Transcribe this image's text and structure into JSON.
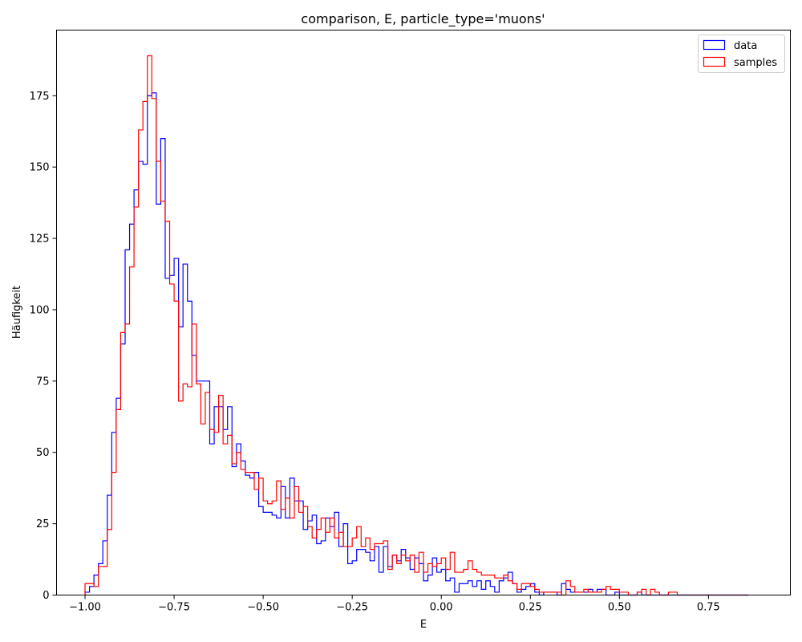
{
  "chart_data": {
    "type": "histogram",
    "title": "comparison, E, particle_type='muons'",
    "xlabel": "E",
    "ylabel": "Häufigkeit",
    "xlim": [
      -1.08,
      0.98
    ],
    "ylim": [
      0,
      198
    ],
    "x_ticks": [
      -1.0,
      -0.75,
      -0.5,
      -0.25,
      0.0,
      0.25,
      0.5,
      0.75
    ],
    "x_tick_labels": [
      "−1.00",
      "−0.75",
      "−0.50",
      "−0.25",
      "0.00",
      "0.25",
      "0.50",
      "0.75"
    ],
    "y_ticks": [
      0,
      25,
      50,
      75,
      100,
      125,
      150,
      175
    ],
    "y_tick_labels": [
      "0",
      "25",
      "50",
      "75",
      "100",
      "125",
      "150",
      "175"
    ],
    "grid": false,
    "legend_position": "top-right",
    "bin_start": -1.0,
    "bin_width": 0.0125,
    "series": [
      {
        "name": "data",
        "color": "#0000ff",
        "values": [
          1,
          3,
          7,
          11,
          19,
          35,
          57,
          69,
          88,
          121,
          130,
          142,
          152,
          151,
          175,
          176,
          137,
          160,
          111,
          112,
          118,
          94,
          116,
          103,
          84,
          75,
          75,
          75,
          53,
          66,
          66,
          58,
          66,
          45,
          53,
          47,
          42,
          41,
          43,
          31,
          29,
          29,
          28,
          27,
          38,
          27,
          41,
          33,
          33,
          23,
          26,
          28,
          18,
          19,
          27,
          24,
          29,
          17,
          25,
          11,
          12,
          16,
          16,
          15,
          12,
          17,
          8,
          17,
          10,
          14,
          12,
          16,
          13,
          9,
          13,
          11,
          5,
          7,
          13,
          8,
          9,
          5,
          6,
          1,
          4,
          4,
          5,
          3,
          5,
          2,
          5,
          3,
          1,
          5,
          6,
          8,
          4,
          1,
          2,
          3,
          4,
          1,
          0,
          1,
          1,
          1,
          0,
          4,
          2,
          1,
          1,
          1,
          1,
          2,
          1,
          2,
          2,
          0,
          0,
          1,
          0,
          0,
          0,
          0,
          1,
          0,
          0,
          0,
          0,
          0,
          0,
          0,
          0,
          0,
          0,
          0,
          0,
          0,
          0,
          0,
          0,
          0,
          0,
          0,
          0,
          0,
          0,
          0,
          0
        ]
      },
      {
        "name": "samples",
        "color": "#ff0000",
        "values": [
          4,
          4,
          3,
          10,
          10,
          23,
          43,
          65,
          92,
          95,
          115,
          136,
          163,
          173,
          189,
          174,
          152,
          138,
          131,
          109,
          103,
          68,
          74,
          73,
          95,
          74,
          60,
          71,
          58,
          57,
          70,
          53,
          56,
          46,
          50,
          44,
          43,
          43,
          37,
          41,
          33,
          32,
          33,
          40,
          30,
          34,
          27,
          38,
          29,
          31,
          24,
          20,
          23,
          27,
          22,
          27,
          20,
          22,
          17,
          17,
          20,
          24,
          17,
          20,
          16,
          18,
          18,
          19,
          9,
          14,
          11,
          14,
          12,
          14,
          8,
          15,
          8,
          11,
          10,
          11,
          13,
          9,
          15,
          8,
          8,
          9,
          12,
          9,
          8,
          7,
          7,
          7,
          6,
          6,
          7,
          5,
          4,
          2,
          4,
          4,
          3,
          2,
          1,
          1,
          1,
          1,
          1,
          0,
          5,
          3,
          1,
          1,
          2,
          1,
          1,
          1,
          2,
          3,
          2,
          2,
          1,
          1,
          0,
          0,
          1,
          2,
          0,
          2,
          1,
          0,
          0,
          1,
          1,
          0,
          0,
          0,
          0,
          0,
          0,
          0,
          0,
          0,
          0,
          0,
          0,
          0,
          0,
          0,
          0
        ]
      }
    ]
  }
}
